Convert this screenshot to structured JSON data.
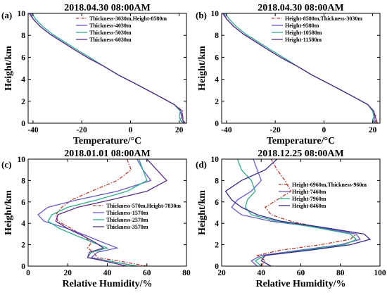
{
  "chart_data": [
    {
      "panel": "(a)",
      "type": "line",
      "title": "2018.04.30 08:00AM",
      "xlabel": "Temperature/°C",
      "ylabel": "Height/km",
      "xlim": [
        -42,
        23
      ],
      "ylim": [
        0,
        10
      ],
      "xticks": [
        -40,
        -20,
        0,
        20
      ],
      "yticks": [
        0,
        2,
        4,
        6,
        8,
        10
      ],
      "xtick_labels": [
        "-40",
        "-20",
        "0",
        "20"
      ],
      "ytick_labels": [
        "0",
        "2",
        "4",
        "6",
        "8",
        "10"
      ],
      "legend_position": "top-right",
      "series": [
        {
          "name": "Thickness-3030m,Height-8580m",
          "color": "#c0392b",
          "dash": "dashdot",
          "x": [
            22,
            21.5,
            21,
            21.5,
            18,
            13,
            8,
            2,
            -5,
            -11,
            -17,
            -23,
            -28,
            -33,
            -37,
            -40,
            -41.5
          ],
          "y": [
            0,
            0.3,
            0.6,
            1.1,
            1.7,
            2.3,
            2.9,
            3.6,
            4.4,
            5.2,
            5.9,
            6.7,
            7.4,
            8.1,
            8.8,
            9.5,
            10
          ]
        },
        {
          "name": "Thickness-4030m",
          "color": "#6a5acd",
          "x": [
            22,
            20.5,
            21,
            20.5,
            18,
            13,
            8,
            2,
            -5,
            -11,
            -17,
            -23,
            -28,
            -33,
            -37,
            -40,
            -41
          ],
          "y": [
            0,
            0.3,
            0.6,
            1.1,
            1.7,
            2.3,
            2.9,
            3.6,
            4.4,
            5.2,
            5.9,
            6.7,
            7.4,
            8.1,
            8.8,
            9.5,
            10
          ]
        },
        {
          "name": "Thickness-5030m",
          "color": "#2bae8a",
          "x": [
            21.5,
            20.5,
            20,
            20.5,
            18,
            13,
            8,
            2,
            -5,
            -11,
            -16,
            -22,
            -27,
            -32,
            -36,
            -39,
            -40.5
          ],
          "y": [
            0,
            0.3,
            0.6,
            1.1,
            1.7,
            2.3,
            2.9,
            3.6,
            4.4,
            5.2,
            5.9,
            6.7,
            7.4,
            8.1,
            8.8,
            9.5,
            10
          ]
        },
        {
          "name": "Thickness-6030m",
          "color": "#5b2c8e",
          "x": [
            22.5,
            21.5,
            21.5,
            21,
            18,
            13,
            8,
            2,
            -5,
            -11,
            -17,
            -23,
            -28,
            -33,
            -37,
            -40,
            -41.5
          ],
          "y": [
            0,
            0.3,
            0.6,
            1.1,
            1.7,
            2.3,
            2.9,
            3.6,
            4.4,
            5.2,
            5.9,
            6.7,
            7.4,
            8.1,
            8.8,
            9.5,
            10
          ]
        }
      ]
    },
    {
      "panel": "(b)",
      "type": "line",
      "title": "2018.04.30 08:00AM",
      "xlabel": "Temperature/°C",
      "ylabel": "Height/km",
      "xlim": [
        -42,
        23
      ],
      "ylim": [
        0,
        10
      ],
      "xticks": [
        -40,
        -20,
        0,
        20
      ],
      "yticks": [
        0,
        2,
        4,
        6,
        8,
        10
      ],
      "xtick_labels": [
        "-40",
        "-20",
        "0",
        "20"
      ],
      "ytick_labels": [
        "0",
        "2",
        "4",
        "6",
        "8",
        "10"
      ],
      "legend_position": "top-right",
      "series": [
        {
          "name": "Height-8580m,Thickness-3030m",
          "color": "#c0392b",
          "dash": "dashdot",
          "x": [
            21.5,
            21,
            21.5,
            20,
            18,
            13,
            8,
            2,
            -5,
            -11,
            -17,
            -23,
            -28,
            -33,
            -37,
            -40,
            -41.5
          ],
          "y": [
            0,
            0.3,
            0.6,
            1.1,
            1.7,
            2.3,
            2.9,
            3.6,
            4.4,
            5.2,
            5.9,
            6.7,
            7.4,
            8.1,
            8.8,
            9.5,
            10
          ]
        },
        {
          "name": "Height-9580m",
          "color": "#6a5acd",
          "x": [
            21,
            20.5,
            21,
            20,
            18,
            13,
            8,
            2,
            -5,
            -11,
            -17,
            -23,
            -28,
            -33,
            -37,
            -40,
            -41
          ],
          "y": [
            0,
            0.3,
            0.6,
            1.1,
            1.7,
            2.3,
            2.9,
            3.6,
            4.4,
            5.2,
            5.9,
            6.7,
            7.4,
            8.1,
            8.8,
            9.5,
            10
          ]
        },
        {
          "name": "Height-10580m",
          "color": "#2bae8a",
          "x": [
            20.5,
            20,
            20.5,
            20,
            18,
            13,
            8,
            2,
            -5,
            -11,
            -16,
            -22,
            -27,
            -32,
            -36,
            -39,
            -40.5
          ],
          "y": [
            0,
            0.3,
            0.6,
            1.1,
            1.7,
            2.3,
            2.9,
            3.6,
            4.4,
            5.2,
            5.9,
            6.7,
            7.4,
            8.1,
            8.8,
            9.5,
            10
          ]
        },
        {
          "name": "Height-11580m",
          "color": "#5b2c8e",
          "x": [
            22,
            21.5,
            21,
            20.5,
            18,
            13,
            8,
            2,
            -5,
            -11,
            -17,
            -23,
            -28,
            -33,
            -37,
            -40,
            -41.5
          ],
          "y": [
            0,
            0.3,
            0.6,
            1.1,
            1.7,
            2.3,
            2.9,
            3.6,
            4.4,
            5.2,
            5.9,
            6.7,
            7.4,
            8.1,
            8.8,
            9.5,
            10
          ]
        }
      ]
    },
    {
      "panel": "(c)",
      "type": "line",
      "title": "2018.01.01 08:00AM",
      "xlabel": "Relative Humidity/%",
      "ylabel": "Height/km",
      "xlim": [
        0,
        80
      ],
      "ylim": [
        0,
        10
      ],
      "xticks": [
        0,
        20,
        40,
        60,
        80
      ],
      "yticks": [
        0,
        2,
        4,
        6,
        8,
        10
      ],
      "xtick_labels": [
        "0",
        "20",
        "40",
        "60",
        "80"
      ],
      "ytick_labels": [
        "0",
        "2",
        "4",
        "6",
        "8",
        "10"
      ],
      "legend_position": "center-right",
      "series": [
        {
          "name": "Thickness-570m,Height-7830m",
          "color": "#c0392b",
          "dash": "dashdot",
          "x": [
            60,
            45,
            35,
            33,
            30,
            32,
            28,
            22,
            15,
            14,
            17,
            22,
            32,
            45,
            52,
            50
          ],
          "y": [
            0,
            0.5,
            0.8,
            1.3,
            1.7,
            2.2,
            2.8,
            3.5,
            4.2,
            4.8,
            5.5,
            6.2,
            7.0,
            8.0,
            9.0,
            10
          ]
        },
        {
          "name": "Thickness-1570m",
          "color": "#6a5acd",
          "x": [
            55,
            40,
            32,
            35,
            45,
            38,
            30,
            20,
            8,
            5,
            10,
            25,
            45,
            62,
            58,
            55
          ],
          "y": [
            0,
            0.5,
            0.8,
            1.3,
            1.7,
            2.2,
            2.8,
            3.5,
            4.2,
            4.8,
            5.5,
            6.2,
            7.0,
            8.0,
            9.0,
            10
          ]
        },
        {
          "name": "Thickness-2570m",
          "color": "#2bae8a",
          "x": [
            55,
            40,
            30,
            32,
            40,
            33,
            25,
            16,
            10,
            12,
            20,
            35,
            50,
            60,
            58,
            56
          ],
          "y": [
            0,
            0.5,
            0.8,
            1.3,
            1.7,
            2.2,
            2.8,
            3.5,
            4.2,
            4.8,
            5.5,
            6.2,
            7.0,
            8.0,
            9.0,
            10
          ]
        },
        {
          "name": "Thickness-3570m",
          "color": "#5b2c8e",
          "x": [
            50,
            38,
            30,
            31,
            38,
            34,
            28,
            20,
            14,
            15,
            25,
            42,
            60,
            70,
            65,
            60
          ],
          "y": [
            0,
            0.5,
            0.8,
            1.3,
            1.7,
            2.2,
            2.8,
            3.5,
            4.2,
            4.8,
            5.5,
            6.2,
            7.0,
            8.0,
            9.0,
            10
          ]
        }
      ]
    },
    {
      "panel": "(d)",
      "type": "line",
      "title": "2018.12.25 08:00AM",
      "xlabel": "Relative Humidity/%",
      "ylabel": "Height/km",
      "xlim": [
        20,
        100
      ],
      "ylim": [
        0,
        10
      ],
      "xticks": [
        20,
        40,
        60,
        80,
        100
      ],
      "yticks": [
        0,
        2,
        4,
        6,
        8,
        10
      ],
      "xtick_labels": [
        "20",
        "40",
        "60",
        "80",
        "100"
      ],
      "ytick_labels": [
        "0",
        "2",
        "4",
        "6",
        "8",
        "10"
      ],
      "legend_position": "center-right",
      "series": [
        {
          "name": "Height-6960m,Thickness-960m",
          "color": "#c0392b",
          "dash": "dashdot",
          "x": [
            40,
            42,
            38,
            50,
            70,
            85,
            88,
            70,
            55,
            45,
            42,
            48,
            55,
            52,
            48,
            45
          ],
          "y": [
            0,
            0.5,
            1.0,
            1.5,
            2.0,
            2.5,
            3.0,
            3.6,
            4.2,
            4.8,
            5.5,
            6.2,
            7.0,
            8.0,
            9.0,
            10
          ]
        },
        {
          "name": "Height-7460m",
          "color": "#6a5acd",
          "x": [
            38,
            35,
            40,
            60,
            80,
            90,
            88,
            70,
            45,
            30,
            25,
            28,
            35,
            40,
            38,
            36
          ],
          "y": [
            0,
            0.5,
            1.0,
            1.5,
            2.0,
            2.5,
            3.0,
            3.6,
            4.2,
            4.8,
            5.5,
            6.2,
            7.0,
            8.0,
            9.0,
            10
          ]
        },
        {
          "name": "Height-7960m",
          "color": "#2bae8a",
          "x": [
            40,
            37,
            42,
            62,
            82,
            88,
            85,
            68,
            48,
            35,
            32,
            33,
            37,
            35,
            30,
            28
          ],
          "y": [
            0,
            0.5,
            1.0,
            1.5,
            2.0,
            2.5,
            3.0,
            3.6,
            4.2,
            4.8,
            5.5,
            6.2,
            7.0,
            8.0,
            9.0,
            10
          ]
        },
        {
          "name": "Height-8460m",
          "color": "#3b2a8e",
          "x": [
            45,
            40,
            42,
            65,
            85,
            95,
            92,
            72,
            50,
            38,
            30,
            25,
            22,
            30,
            42,
            48
          ],
          "y": [
            0,
            0.5,
            1.0,
            1.5,
            2.0,
            2.5,
            3.0,
            3.6,
            4.2,
            4.8,
            5.5,
            6.2,
            7.0,
            8.0,
            9.0,
            10
          ]
        }
      ]
    }
  ]
}
